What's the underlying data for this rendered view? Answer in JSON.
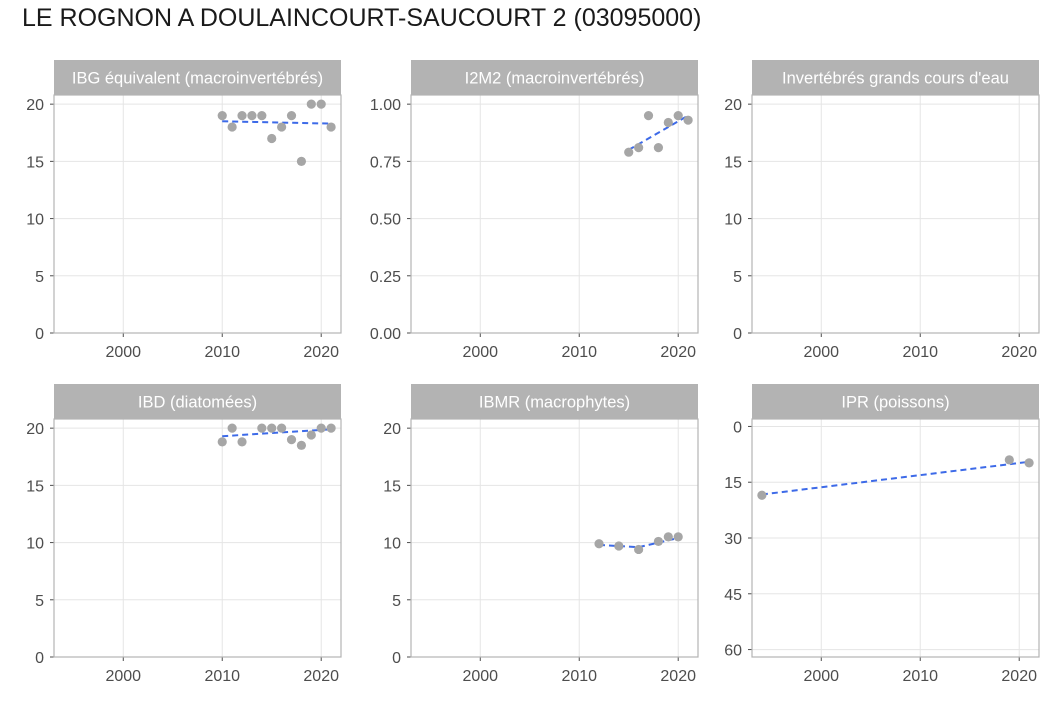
{
  "page": {
    "title": "LE ROGNON A DOULAINCOURT-SAUCOURT 2 (03095000)"
  },
  "colors": {
    "strip": "#b3b3b3",
    "grid": "#e5e5e5",
    "border": "#b3b3b3",
    "points": "#a6a6a6",
    "trend": "#3d6ae8"
  },
  "chart_data": [
    {
      "type": "scatter",
      "title": "IBG équivalent (macroinvertébrés)",
      "xlim": [
        1993,
        2022
      ],
      "xticks": [
        2000,
        2010,
        2020
      ],
      "xtick_labels": [
        "2000",
        "2010",
        "2020"
      ],
      "ylim": [
        0,
        20.8
      ],
      "y_reversed": false,
      "yticks": [
        0,
        5,
        10,
        15,
        20
      ],
      "ytick_labels": [
        "0",
        "5",
        "10",
        "15",
        "20"
      ],
      "grid": true,
      "points": [
        [
          2010,
          19
        ],
        [
          2011,
          18
        ],
        [
          2012,
          19
        ],
        [
          2013,
          19
        ],
        [
          2014,
          19
        ],
        [
          2015,
          17
        ],
        [
          2016,
          18
        ],
        [
          2017,
          19
        ],
        [
          2018,
          15
        ],
        [
          2019,
          20
        ],
        [
          2020,
          20
        ],
        [
          2021,
          18
        ]
      ],
      "trend": [
        [
          2010,
          18.5
        ],
        [
          2021,
          18.3
        ]
      ]
    },
    {
      "type": "scatter",
      "title": "I2M2 (macroinvertébrés)",
      "xlim": [
        1993,
        2022
      ],
      "xticks": [
        2000,
        2010,
        2020
      ],
      "xtick_labels": [
        "2000",
        "2010",
        "2020"
      ],
      "ylim": [
        0,
        1.04
      ],
      "y_reversed": false,
      "yticks": [
        0,
        0.25,
        0.5,
        0.75,
        1.0
      ],
      "ytick_labels": [
        "0.00",
        "0.25",
        "0.50",
        "0.75",
        "1.00"
      ],
      "grid": true,
      "points": [
        [
          2015,
          0.79
        ],
        [
          2016,
          0.81
        ],
        [
          2017,
          0.95
        ],
        [
          2018,
          0.81
        ],
        [
          2019,
          0.92
        ],
        [
          2020,
          0.95
        ],
        [
          2021,
          0.93
        ]
      ],
      "trend": [
        [
          2015,
          0.8
        ],
        [
          2021,
          0.95
        ]
      ]
    },
    {
      "type": "scatter",
      "title": "Invertébrés grands cours d'eau",
      "xlim": [
        1993,
        2022
      ],
      "xticks": [
        2000,
        2010,
        2020
      ],
      "xtick_labels": [
        "2000",
        "2010",
        "2020"
      ],
      "ylim": [
        0,
        20.8
      ],
      "y_reversed": false,
      "yticks": [
        0,
        5,
        10,
        15,
        20
      ],
      "ytick_labels": [
        "0",
        "5",
        "10",
        "15",
        "20"
      ],
      "grid": true,
      "points": [],
      "trend": []
    },
    {
      "type": "scatter",
      "title": "IBD (diatomées)",
      "xlim": [
        1993,
        2022
      ],
      "xticks": [
        2000,
        2010,
        2020
      ],
      "xtick_labels": [
        "2000",
        "2010",
        "2020"
      ],
      "ylim": [
        0,
        20.8
      ],
      "y_reversed": false,
      "yticks": [
        0,
        5,
        10,
        15,
        20
      ],
      "ytick_labels": [
        "0",
        "5",
        "10",
        "15",
        "20"
      ],
      "grid": true,
      "points": [
        [
          2010,
          18.8
        ],
        [
          2011,
          20
        ],
        [
          2012,
          18.8
        ],
        [
          2014,
          20
        ],
        [
          2015,
          20
        ],
        [
          2016,
          20
        ],
        [
          2017,
          19
        ],
        [
          2018,
          18.5
        ],
        [
          2019,
          19.4
        ],
        [
          2020,
          20
        ],
        [
          2021,
          20
        ]
      ],
      "trend": [
        [
          2010,
          19.3
        ],
        [
          2021,
          19.9
        ]
      ]
    },
    {
      "type": "scatter",
      "title": "IBMR (macrophytes)",
      "xlim": [
        1993,
        2022
      ],
      "xticks": [
        2000,
        2010,
        2020
      ],
      "xtick_labels": [
        "2000",
        "2010",
        "2020"
      ],
      "ylim": [
        0,
        20.8
      ],
      "y_reversed": false,
      "yticks": [
        0,
        5,
        10,
        15,
        20
      ],
      "ytick_labels": [
        "0",
        "5",
        "10",
        "15",
        "20"
      ],
      "grid": true,
      "points": [
        [
          2012,
          9.9
        ],
        [
          2014,
          9.7
        ],
        [
          2016,
          9.4
        ],
        [
          2018,
          10.1
        ],
        [
          2019,
          10.5
        ],
        [
          2020,
          10.5
        ]
      ],
      "trend": [
        [
          2012,
          9.8
        ],
        [
          2016,
          9.6
        ],
        [
          2020,
          10.4
        ]
      ]
    },
    {
      "type": "scatter",
      "title": "IPR (poissons)",
      "xlim": [
        1993,
        2022
      ],
      "xticks": [
        2000,
        2010,
        2020
      ],
      "xtick_labels": [
        "2000",
        "2010",
        "2020"
      ],
      "ylim": [
        -2,
        62
      ],
      "y_reversed": true,
      "yticks": [
        0,
        15,
        30,
        45,
        60
      ],
      "ytick_labels": [
        "0",
        "15",
        "30",
        "45",
        "60"
      ],
      "grid": true,
      "points": [
        [
          1994,
          18.5
        ],
        [
          2019,
          9
        ],
        [
          2021,
          9.8
        ]
      ],
      "trend": [
        [
          1994,
          18.3
        ],
        [
          2021,
          9.5
        ]
      ]
    }
  ]
}
